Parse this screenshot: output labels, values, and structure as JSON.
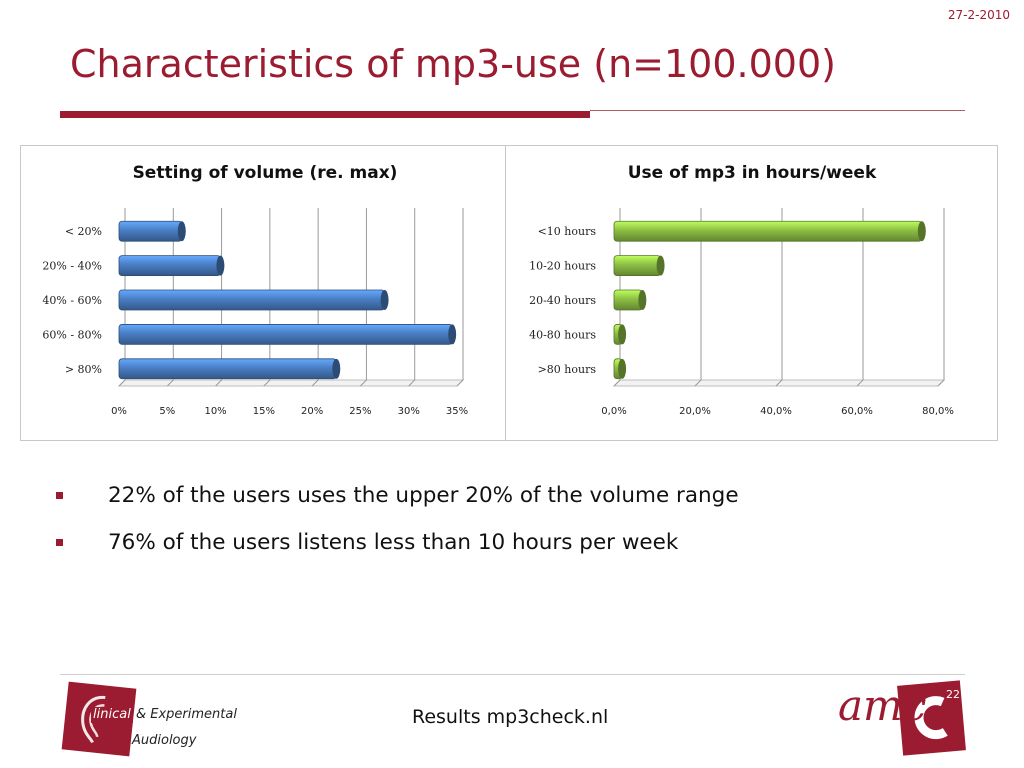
{
  "slide": {
    "date": "27-2-2010",
    "title": "Characteristics of mp3-use (n=100.000)",
    "bullets": [
      "22% of the users uses the upper 20% of the volume range",
      "76% of the users listens less than 10 hours per week"
    ],
    "footer_text": "Results mp3check.nl",
    "page_number": "22",
    "logo_left": {
      "line1_prefix": "linical",
      "line1_rest": "& Experimental",
      "line2": "Audiology"
    },
    "logo_right": {
      "text": "amc"
    }
  },
  "colors": {
    "accent": "#9b1b30",
    "bar_blue": "#4a7ec4",
    "bar_blue_dark": "#2a5a9a",
    "bar_green": "#8dbf45",
    "bar_green_dark": "#5f8f24"
  },
  "chart_data": [
    {
      "type": "bar",
      "orientation": "horizontal",
      "title": "Setting of volume (re. max)",
      "categories": [
        "< 20%",
        "20% - 40%",
        "40% - 60%",
        "60% - 80%",
        "> 80%"
      ],
      "values": [
        6.5,
        10.5,
        27.5,
        34.5,
        22.5
      ],
      "xlim": [
        0,
        35
      ],
      "xticks": [
        "0%",
        "5%",
        "10%",
        "15%",
        "20%",
        "25%",
        "30%",
        "35%"
      ],
      "grid": "vertical",
      "legend": "none",
      "color": "#4a7ec4"
    },
    {
      "type": "bar",
      "orientation": "horizontal",
      "title": "Use of mp3 in hours/week",
      "categories": [
        "<10 hours",
        "10-20 hours",
        "20-40 hours",
        "40-80 hours",
        ">80 hours"
      ],
      "values": [
        76.0,
        11.5,
        7.0,
        2.0,
        2.0
      ],
      "xlim": [
        0,
        80
      ],
      "xticks": [
        "0,0%",
        "20,0%",
        "40,0%",
        "60,0%",
        "80,0%"
      ],
      "grid": "vertical",
      "legend": "none",
      "color": "#8dbf45"
    }
  ]
}
